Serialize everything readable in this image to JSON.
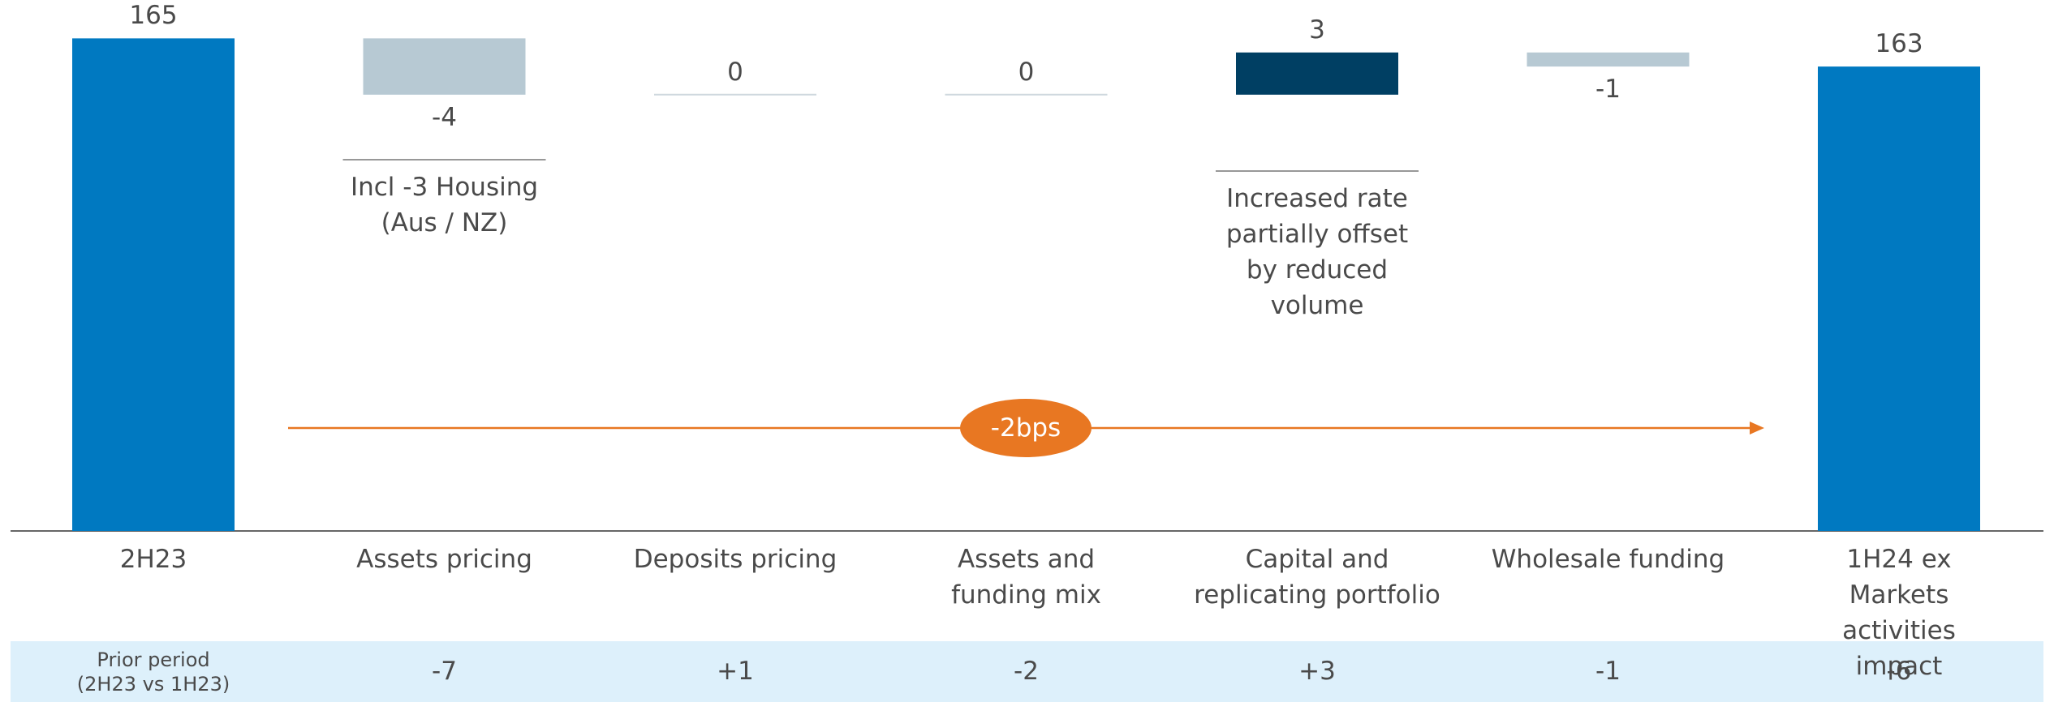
{
  "chart_data": {
    "type": "waterfall",
    "categories": [
      "2H23",
      "Assets pricing",
      "Deposits pricing",
      "Assets and\nfunding mix",
      "Capital and\nreplicating portfolio",
      "Wholesale funding",
      "1H24 ex Markets\nactivities impact"
    ],
    "values": [
      165,
      -4,
      0,
      0,
      3,
      -1,
      163
    ],
    "measure": [
      "total",
      "relative",
      "relative",
      "relative",
      "relative",
      "relative",
      "total"
    ],
    "colors": {
      "total": "#0079c1",
      "increase": "#003f63",
      "decrease": "#b7c9d3",
      "zero": "#cfd8de"
    },
    "ylim": [
      130,
      166
    ],
    "annotations": [
      {
        "text": "Incl -3 Housing\n(Aus / NZ)",
        "category": 1
      },
      {
        "text": "Increased rate\npartially offset\nby reduced\nvolume",
        "category": 4
      }
    ],
    "arrow_label": "-2bps",
    "prior_period": {
      "label": "Prior period\n(2H23 vs 1H23)",
      "values": [
        "-7",
        "+1",
        "-2",
        "+3",
        "-1",
        "-6"
      ]
    }
  }
}
